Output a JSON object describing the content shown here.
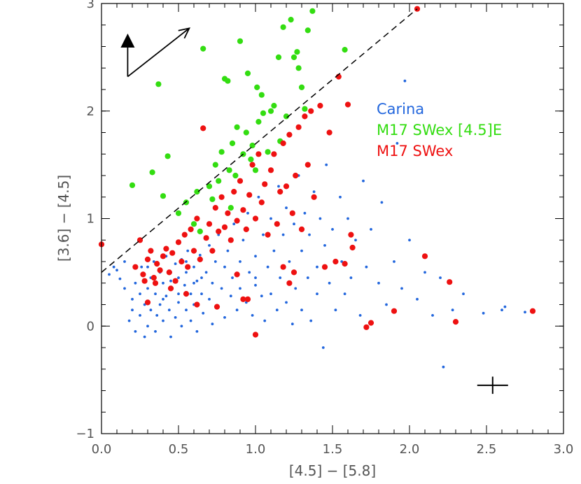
{
  "chart_data": {
    "type": "scatter",
    "title": "",
    "xlabel": "[4.5] − [5.8]",
    "ylabel": "[3.6] − [4.5]",
    "xlim": [
      0.0,
      3.0
    ],
    "ylim": [
      -1.0,
      3.0
    ],
    "xticks": [
      "0.0",
      "0.5",
      "1.0",
      "1.5",
      "2.0",
      "2.5",
      "3.0"
    ],
    "yticks": [
      "−1",
      "0",
      "1",
      "2",
      "3"
    ],
    "grid": false,
    "legend_placement": "upper-right",
    "reddening_line": {
      "x": [
        0.0,
        2.05
      ],
      "y": [
        0.5,
        2.95
      ],
      "style": "dashed"
    },
    "error_cross": {
      "x": 2.54,
      "y": -0.55,
      "dx": 0.1,
      "dy": 0.08
    },
    "extinction_vector": {
      "x": 0.17,
      "y": 2.32,
      "dx": 0.4,
      "dy": 0.45,
      "extra_dy": 0.4
    },
    "series": [
      {
        "name": "Carina",
        "color": "#2266dd",
        "marker": "small-dot",
        "points": [
          [
            0.05,
            0.48
          ],
          [
            0.08,
            0.55
          ],
          [
            0.1,
            0.52
          ],
          [
            0.12,
            0.44
          ],
          [
            0.15,
            0.6
          ],
          [
            0.15,
            0.35
          ],
          [
            0.18,
            0.05
          ],
          [
            0.2,
            0.25
          ],
          [
            0.2,
            0.15
          ],
          [
            0.22,
            0.4
          ],
          [
            0.22,
            -0.05
          ],
          [
            0.25,
            0.3
          ],
          [
            0.25,
            0.1
          ],
          [
            0.26,
            0.55
          ],
          [
            0.28,
            0.2
          ],
          [
            0.28,
            -0.1
          ],
          [
            0.3,
            0.35
          ],
          [
            0.3,
            0.0
          ],
          [
            0.32,
            0.45
          ],
          [
            0.32,
            0.15
          ],
          [
            0.34,
            0.6
          ],
          [
            0.35,
            0.3
          ],
          [
            0.35,
            -0.05
          ],
          [
            0.36,
            0.1
          ],
          [
            0.38,
            0.5
          ],
          [
            0.38,
            0.2
          ],
          [
            0.4,
            0.4
          ],
          [
            0.4,
            0.05
          ],
          [
            0.42,
            0.65
          ],
          [
            0.42,
            0.28
          ],
          [
            0.44,
            0.15
          ],
          [
            0.45,
            0.5
          ],
          [
            0.45,
            -0.1
          ],
          [
            0.46,
            0.35
          ],
          [
            0.48,
            0.58
          ],
          [
            0.48,
            0.08
          ],
          [
            0.5,
            0.45
          ],
          [
            0.5,
            0.22
          ],
          [
            0.52,
            0.62
          ],
          [
            0.52,
            0.0
          ],
          [
            0.54,
            0.38
          ],
          [
            0.55,
            0.5
          ],
          [
            0.55,
            0.15
          ],
          [
            0.56,
            0.7
          ],
          [
            0.58,
            0.3
          ],
          [
            0.58,
            0.05
          ],
          [
            0.6,
            0.55
          ],
          [
            0.6,
            0.2
          ],
          [
            0.62,
            0.42
          ],
          [
            0.62,
            -0.05
          ],
          [
            0.64,
            0.66
          ],
          [
            0.65,
            0.3
          ],
          [
            0.66,
            0.12
          ],
          [
            0.68,
            0.5
          ],
          [
            0.7,
            0.75
          ],
          [
            0.7,
            0.25
          ],
          [
            0.72,
            0.4
          ],
          [
            0.72,
            0.02
          ],
          [
            0.74,
            0.6
          ],
          [
            0.75,
            0.18
          ],
          [
            0.76,
            0.85
          ],
          [
            0.78,
            0.35
          ],
          [
            0.8,
            0.55
          ],
          [
            0.8,
            0.08
          ],
          [
            0.82,
            0.7
          ],
          [
            0.84,
            0.28
          ],
          [
            0.85,
            0.45
          ],
          [
            0.86,
            0.95
          ],
          [
            0.88,
            0.15
          ],
          [
            0.9,
            0.6
          ],
          [
            0.9,
            0.35
          ],
          [
            0.92,
            0.8
          ],
          [
            0.94,
            0.22
          ],
          [
            0.95,
            1.05
          ],
          [
            0.96,
            0.5
          ],
          [
            0.98,
            0.1
          ],
          [
            1.0,
            0.65
          ],
          [
            1.0,
            0.38
          ],
          [
            1.02,
            1.2
          ],
          [
            1.04,
            0.28
          ],
          [
            1.05,
            0.85
          ],
          [
            1.06,
            0.05
          ],
          [
            1.08,
            0.55
          ],
          [
            1.1,
            1.0
          ],
          [
            1.1,
            0.3
          ],
          [
            1.12,
            0.7
          ],
          [
            1.14,
            0.15
          ],
          [
            1.15,
            1.3
          ],
          [
            1.16,
            0.45
          ],
          [
            1.18,
            0.85
          ],
          [
            1.2,
            0.22
          ],
          [
            1.2,
            1.1
          ],
          [
            1.22,
            0.6
          ],
          [
            1.24,
            0.02
          ],
          [
            1.25,
            0.95
          ],
          [
            1.26,
            0.35
          ],
          [
            1.28,
            1.4
          ],
          [
            1.3,
            0.7
          ],
          [
            1.3,
            0.15
          ],
          [
            1.32,
            1.05
          ],
          [
            1.34,
            0.45
          ],
          [
            1.35,
            0.85
          ],
          [
            1.36,
            0.05
          ],
          [
            1.38,
            1.25
          ],
          [
            1.4,
            0.55
          ],
          [
            1.4,
            0.3
          ],
          [
            1.42,
            1.0
          ],
          [
            1.44,
            -0.2
          ],
          [
            1.45,
            0.75
          ],
          [
            1.46,
            1.5
          ],
          [
            1.48,
            0.4
          ],
          [
            1.5,
            0.9
          ],
          [
            1.52,
            0.15
          ],
          [
            1.55,
            1.2
          ],
          [
            1.56,
            0.6
          ],
          [
            1.58,
            0.3
          ],
          [
            1.6,
            1.0
          ],
          [
            1.62,
            0.45
          ],
          [
            1.65,
            0.8
          ],
          [
            1.68,
            0.1
          ],
          [
            1.7,
            1.35
          ],
          [
            1.72,
            0.55
          ],
          [
            1.75,
            0.9
          ],
          [
            1.8,
            0.4
          ],
          [
            1.82,
            1.15
          ],
          [
            1.85,
            0.2
          ],
          [
            1.9,
            0.6
          ],
          [
            1.92,
            1.7
          ],
          [
            1.95,
            0.35
          ],
          [
            1.97,
            2.28
          ],
          [
            2.0,
            0.8
          ],
          [
            2.05,
            0.25
          ],
          [
            2.1,
            0.5
          ],
          [
            2.15,
            0.1
          ],
          [
            2.2,
            0.45
          ],
          [
            2.22,
            -0.38
          ],
          [
            2.28,
            0.15
          ],
          [
            2.35,
            0.3
          ],
          [
            2.48,
            0.12
          ],
          [
            2.6,
            0.15
          ],
          [
            2.62,
            0.18
          ],
          [
            2.75,
            0.13
          ],
          [
            1.0,
            0.45
          ],
          [
            0.6,
            0.4
          ],
          [
            0.5,
            0.3
          ],
          [
            0.4,
            0.25
          ],
          [
            0.3,
            0.55
          ],
          [
            0.55,
            0.6
          ],
          [
            0.65,
            0.45
          ],
          [
            0.45,
            0.42
          ]
        ]
      },
      {
        "name": "M17 SWex [4.5]E",
        "color": "#33dd11",
        "marker": "large-dot",
        "points": [
          [
            0.2,
            1.31
          ],
          [
            0.33,
            1.43
          ],
          [
            0.37,
            2.25
          ],
          [
            0.4,
            1.21
          ],
          [
            0.43,
            1.58
          ],
          [
            0.5,
            1.05
          ],
          [
            0.55,
            1.15
          ],
          [
            0.6,
            0.95
          ],
          [
            0.62,
            1.25
          ],
          [
            0.64,
            0.88
          ],
          [
            0.66,
            2.58
          ],
          [
            0.7,
            1.3
          ],
          [
            0.72,
            1.18
          ],
          [
            0.74,
            1.5
          ],
          [
            0.76,
            1.35
          ],
          [
            0.78,
            1.62
          ],
          [
            0.8,
            2.3
          ],
          [
            0.82,
            2.28
          ],
          [
            0.83,
            1.45
          ],
          [
            0.85,
            1.7
          ],
          [
            0.87,
            1.4
          ],
          [
            0.88,
            1.85
          ],
          [
            0.9,
            2.65
          ],
          [
            0.92,
            1.6
          ],
          [
            0.94,
            1.8
          ],
          [
            0.95,
            2.35
          ],
          [
            0.97,
            1.55
          ],
          [
            0.98,
            1.68
          ],
          [
            1.0,
            1.45
          ],
          [
            1.01,
            2.22
          ],
          [
            1.02,
            1.9
          ],
          [
            1.04,
            2.15
          ],
          [
            1.05,
            1.98
          ],
          [
            1.08,
            1.62
          ],
          [
            1.1,
            2.0
          ],
          [
            1.12,
            2.05
          ],
          [
            1.15,
            2.5
          ],
          [
            1.16,
            1.72
          ],
          [
            1.18,
            2.78
          ],
          [
            1.2,
            1.95
          ],
          [
            1.23,
            2.85
          ],
          [
            1.25,
            2.5
          ],
          [
            1.27,
            2.55
          ],
          [
            1.28,
            2.4
          ],
          [
            1.3,
            2.22
          ],
          [
            1.32,
            2.02
          ],
          [
            1.34,
            2.75
          ],
          [
            1.37,
            2.93
          ],
          [
            1.58,
            2.57
          ],
          [
            0.84,
            1.1
          ]
        ]
      },
      {
        "name": "M17 SWex",
        "color": "#ee1111",
        "marker": "large-dot",
        "points": [
          [
            0.0,
            0.76
          ],
          [
            0.22,
            0.55
          ],
          [
            0.25,
            0.8
          ],
          [
            0.27,
            0.48
          ],
          [
            0.3,
            0.62
          ],
          [
            0.32,
            0.7
          ],
          [
            0.34,
            0.45
          ],
          [
            0.36,
            0.58
          ],
          [
            0.38,
            0.52
          ],
          [
            0.4,
            0.65
          ],
          [
            0.42,
            0.72
          ],
          [
            0.44,
            0.5
          ],
          [
            0.46,
            0.68
          ],
          [
            0.48,
            0.42
          ],
          [
            0.5,
            0.78
          ],
          [
            0.52,
            0.6
          ],
          [
            0.54,
            0.85
          ],
          [
            0.56,
            0.55
          ],
          [
            0.58,
            0.9
          ],
          [
            0.6,
            0.7
          ],
          [
            0.62,
            1.0
          ],
          [
            0.64,
            0.62
          ],
          [
            0.66,
            1.84
          ],
          [
            0.68,
            0.82
          ],
          [
            0.7,
            0.95
          ],
          [
            0.72,
            0.7
          ],
          [
            0.74,
            1.1
          ],
          [
            0.76,
            0.88
          ],
          [
            0.78,
            1.2
          ],
          [
            0.8,
            0.92
          ],
          [
            0.82,
            1.05
          ],
          [
            0.84,
            0.8
          ],
          [
            0.86,
            1.25
          ],
          [
            0.88,
            0.98
          ],
          [
            0.9,
            1.35
          ],
          [
            0.92,
            1.08
          ],
          [
            0.94,
            0.9
          ],
          [
            0.96,
            1.22
          ],
          [
            0.98,
            1.5
          ],
          [
            1.0,
            1.0
          ],
          [
            1.02,
            1.6
          ],
          [
            1.04,
            1.15
          ],
          [
            1.06,
            1.32
          ],
          [
            1.08,
            0.85
          ],
          [
            1.1,
            1.45
          ],
          [
            1.12,
            1.6
          ],
          [
            1.14,
            0.95
          ],
          [
            1.16,
            1.25
          ],
          [
            1.18,
            1.7
          ],
          [
            1.2,
            1.3
          ],
          [
            1.22,
            1.78
          ],
          [
            1.24,
            1.05
          ],
          [
            1.26,
            1.4
          ],
          [
            1.28,
            1.85
          ],
          [
            1.3,
            0.9
          ],
          [
            1.32,
            1.95
          ],
          [
            1.34,
            1.5
          ],
          [
            1.36,
            2.0
          ],
          [
            1.38,
            1.2
          ],
          [
            1.42,
            2.05
          ],
          [
            1.45,
            0.55
          ],
          [
            1.48,
            1.8
          ],
          [
            1.52,
            0.6
          ],
          [
            1.54,
            2.32
          ],
          [
            1.58,
            0.58
          ],
          [
            1.6,
            2.06
          ],
          [
            1.62,
            0.85
          ],
          [
            1.63,
            0.73
          ],
          [
            2.05,
            2.95
          ],
          [
            1.72,
            -0.01
          ],
          [
            1.75,
            0.03
          ],
          [
            1.9,
            0.14
          ],
          [
            2.1,
            0.65
          ],
          [
            2.26,
            0.41
          ],
          [
            2.3,
            0.04
          ],
          [
            2.8,
            0.14
          ],
          [
            0.95,
            0.25
          ],
          [
            1.0,
            -0.08
          ],
          [
            0.92,
            0.25
          ],
          [
            1.18,
            0.55
          ],
          [
            1.22,
            0.4
          ],
          [
            1.25,
            0.5
          ],
          [
            0.88,
            0.48
          ],
          [
            0.75,
            0.18
          ],
          [
            0.62,
            0.2
          ],
          [
            0.55,
            0.3
          ],
          [
            0.45,
            0.35
          ],
          [
            0.35,
            0.4
          ],
          [
            0.28,
            0.42
          ],
          [
            0.3,
            0.22
          ]
        ]
      }
    ]
  }
}
